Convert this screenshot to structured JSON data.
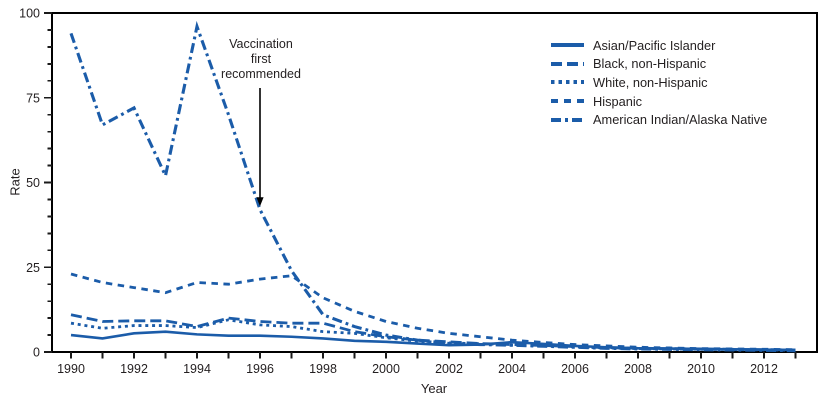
{
  "chart_data": {
    "type": "line",
    "xlabel": "Year",
    "ylabel": "Rate",
    "line_color": "#1b5ca9",
    "axis_color": "#1a1a1a",
    "ylim": [
      0,
      100
    ],
    "y_major_ticks": [
      0,
      25,
      50,
      75,
      100
    ],
    "y_tick_labels": [
      "0",
      "25",
      "50",
      "75",
      "100"
    ],
    "y_minor_step": 5,
    "x": [
      1990,
      1991,
      1992,
      1993,
      1994,
      1995,
      1996,
      1997,
      1998,
      1999,
      2000,
      2001,
      2002,
      2003,
      2004,
      2005,
      2006,
      2007,
      2008,
      2009,
      2010,
      2011,
      2012,
      2013
    ],
    "x_labeled_ticks": [
      1990,
      1992,
      1994,
      1996,
      1998,
      2000,
      2002,
      2004,
      2006,
      2008,
      2010,
      2012
    ],
    "x_tick_labels": [
      "1990",
      "1992",
      "1994",
      "1996",
      "1998",
      "2000",
      "2002",
      "2004",
      "2006",
      "2008",
      "2010",
      "2012"
    ],
    "legend_position": "top-right",
    "grid": false,
    "series": [
      {
        "name": "Asian/Pacific Islander",
        "style": "solid",
        "values": [
          5,
          4,
          5.5,
          6,
          5.2,
          4.8,
          4.8,
          4.5,
          4,
          3.3,
          3,
          2.5,
          2,
          2.2,
          2.9,
          2.4,
          1.8,
          1.4,
          1.1,
          1,
          0.9,
          0.8,
          0.7,
          0.6
        ]
      },
      {
        "name": "Black, non-Hispanic",
        "style": "long-dash",
        "values": [
          11,
          9,
          9.2,
          9.2,
          7.5,
          10,
          9,
          8.5,
          8.5,
          6,
          4.5,
          3.5,
          3,
          2.5,
          2.2,
          1.9,
          1.6,
          1.3,
          1.1,
          1,
          0.9,
          0.8,
          0.7,
          0.6
        ]
      },
      {
        "name": "White, non-Hispanic",
        "style": "dotted",
        "values": [
          8.5,
          7,
          7.8,
          7.8,
          7.2,
          9.5,
          8,
          7.5,
          6,
          5.5,
          4.2,
          3.2,
          2.7,
          2.4,
          2,
          1.8,
          1.5,
          1.2,
          1,
          0.9,
          0.8,
          0.7,
          0.6,
          0.5
        ]
      },
      {
        "name": "Hispanic",
        "style": "medium-dash",
        "values": [
          23,
          20.5,
          19,
          17.5,
          20.5,
          20,
          21.5,
          22.5,
          16,
          12,
          9,
          7,
          5.5,
          4.5,
          3.5,
          2.8,
          2.2,
          1.8,
          1.4,
          1.2,
          1,
          0.9,
          0.8,
          0.7
        ]
      },
      {
        "name": "American Indian/Alaska Native",
        "style": "dash-dot",
        "values": [
          94,
          67,
          72,
          52,
          96,
          70,
          42,
          24,
          11,
          7.5,
          5,
          3.5,
          2.5,
          2.2,
          2,
          1.7,
          1.4,
          1.1,
          0.9,
          0.8,
          0.7,
          0.6,
          0.5,
          0.4
        ]
      }
    ],
    "annotation": {
      "lines": [
        "Vaccination",
        "first",
        "recommended"
      ],
      "x_year": 1996,
      "arrow_tip_rate": 43
    }
  }
}
